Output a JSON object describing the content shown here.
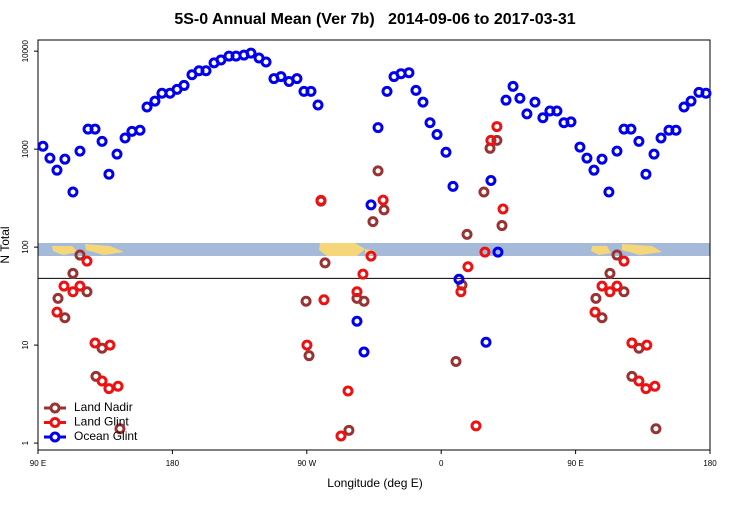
{
  "chart_data": {
    "type": "scatter",
    "title": "5S-0 Annual Mean (Ver 7b)   2014-09-06 to 2017-03-31",
    "x_label": "Longitude (deg E)",
    "y_label": "N Total",
    "log_y": true,
    "xlim": [
      90,
      540
    ],
    "xticks": [
      {
        "value": 90,
        "label": "90 E"
      },
      180,
      {
        "value": 270,
        "label": "90 W"
      },
      {
        "value": 360,
        "label": "0"
      },
      {
        "value": 450,
        "label": "90 E"
      },
      180
    ],
    "ylim": [
      0.85,
      13000
    ],
    "yticks": [
      1,
      10,
      100,
      1000,
      10000
    ],
    "hline": 48,
    "legend": "bottom-left",
    "series": [
      {
        "name": "Land Nadir",
        "color": "#993333",
        "x": [
          103.4,
          108,
          113.4,
          118.1,
          122.8,
          128.8,
          132.9,
          144.9,
          269.5,
          271.5,
          282.2,
          279.5,
          298.2,
          303.6,
          308.3,
          314.3,
          317.7,
          321.7,
          369.9,
          373.9,
          377.3,
          388.6,
          392.7,
          397.3,
          400.7,
          463.6,
          467.7,
          473,
          477.7,
          482.4,
          487.7,
          492.4,
          503.8
        ],
        "values": [
          30,
          19,
          54,
          83,
          35,
          4.8,
          9.3,
          1.4,
          28,
          7.8,
          69,
          295,
          1.35,
          30,
          28,
          182,
          600,
          240,
          6.8,
          41,
          135,
          365,
          1020,
          1230,
          166,
          30,
          19,
          54,
          83,
          35,
          4.8,
          9.3,
          1.4
        ]
      },
      {
        "name": "Land Glint",
        "color": "#ee1111",
        "x": [
          102.7,
          107.4,
          113.4,
          118.1,
          122.8,
          128.2,
          132.9,
          137.5,
          143.6,
          138.2,
          279.5,
          270.1,
          281.5,
          292.9,
          297.6,
          303.6,
          307.6,
          313,
          321.1,
          373.2,
          377.9,
          383.3,
          389.3,
          393.3,
          397.3,
          401.4,
          463,
          467.7,
          473,
          477.7,
          482.4,
          487.7,
          492.4,
          497.1,
          503.1,
          497.7
        ],
        "values": [
          21.7,
          40,
          35,
          40,
          72,
          10.5,
          4.3,
          3.6,
          3.8,
          10,
          300,
          10,
          29,
          1.18,
          3.4,
          35,
          53,
          81,
          302,
          35,
          63,
          1.5,
          89,
          1230,
          1700,
          245,
          21.7,
          40,
          35,
          40,
          72,
          10.5,
          4.3,
          3.6,
          3.8,
          10
        ]
      },
      {
        "name": "Ocean Glint",
        "color": "#0000ee",
        "x": [
          93.3,
          98,
          102.7,
          108,
          113.4,
          118.1,
          123.5,
          128.2,
          132.9,
          137.5,
          142.9,
          148.3,
          152.9,
          158.3,
          163,
          168.3,
          173,
          178.4,
          183.1,
          187.8,
          193.1,
          197.8,
          202.5,
          207.9,
          212.5,
          217.9,
          222.6,
          227.9,
          232.6,
          238,
          242.7,
          248,
          252.7,
          258.1,
          263.4,
          268.1,
          272.8,
          277.5,
          303.6,
          308.3,
          313,
          317.7,
          323.7,
          328.4,
          333.1,
          338.4,
          343.1,
          347.8,
          352.5,
          357.2,
          363.2,
          367.9,
          371.9,
          390,
          393.3,
          398,
          403.4,
          408.1,
          412.7,
          417.4,
          422.8,
          428.1,
          432.8,
          437.5,
          442.2,
          446.9,
          452.9,
          457.6,
          462.3,
          467.7,
          472.3,
          477.7,
          482.4,
          487.1,
          492.4,
          497.1,
          502.5,
          507.2,
          512.5,
          517.2,
          522.6,
          527.3,
          532.6,
          537.3
        ],
        "values": [
          1070,
          810,
          610,
          790,
          365,
          955,
          1600,
          1600,
          1200,
          555,
          890,
          1300,
          1520,
          1560,
          2690,
          3090,
          3720,
          3720,
          4070,
          4470,
          5750,
          6310,
          6310,
          7590,
          8130,
          8910,
          8910,
          9120,
          9550,
          8510,
          7760,
          5250,
          5500,
          4900,
          5250,
          3890,
          3890,
          2820,
          17.5,
          8.5,
          270,
          1660,
          3890,
          5500,
          5890,
          6030,
          3980,
          3020,
          1860,
          1410,
          930,
          417,
          47,
          10.7,
          479,
          89,
          3160,
          4370,
          3310,
          2290,
          3020,
          2090,
          2450,
          2450,
          1860,
          1900,
          1050,
          810,
          610,
          790,
          365,
          955,
          1600,
          1600,
          1200,
          555,
          890,
          1300,
          1560,
          1560,
          2690,
          3090,
          3800,
          3720
        ]
      }
    ]
  }
}
